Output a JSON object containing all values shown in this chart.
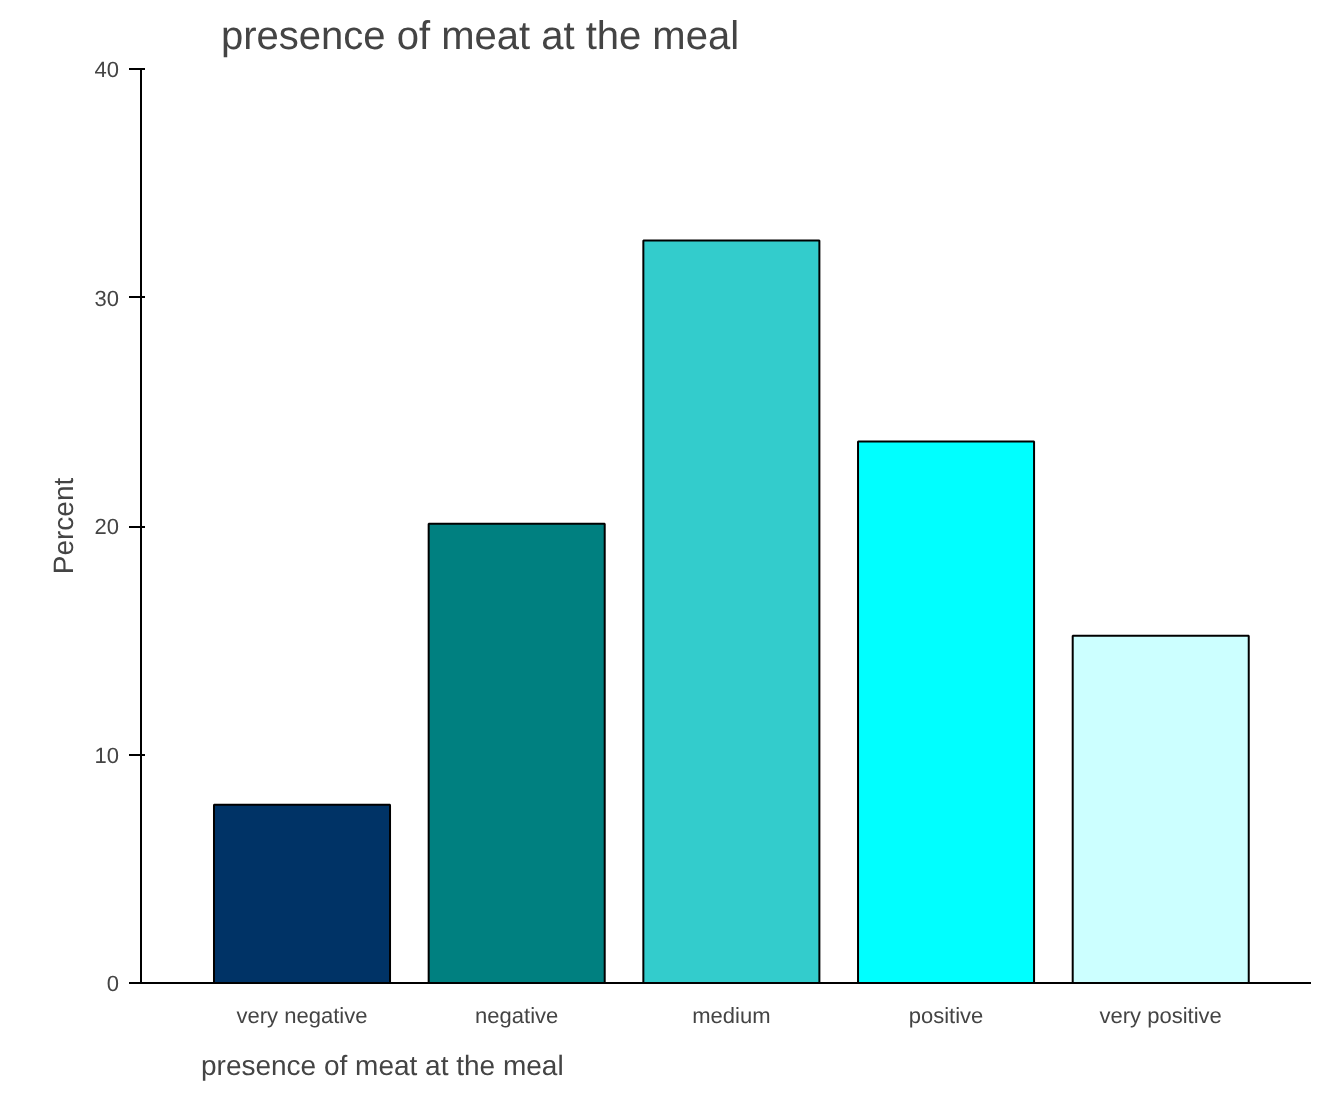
{
  "chart_data": {
    "type": "bar",
    "title": "presence of meat at the meal",
    "xlabel": "presence of meat at the meal",
    "ylabel": "Percent",
    "categories": [
      "very negative",
      "negative",
      "medium",
      "positive",
      "very positive"
    ],
    "values": [
      7.8,
      20.1,
      32.5,
      23.7,
      15.2
    ],
    "colors": [
      "#003366",
      "#008080",
      "#33cccc",
      "#00ffff",
      "#ccffff"
    ],
    "ylim": [
      0,
      40
    ],
    "yticks": [
      0,
      10,
      20,
      30,
      40
    ],
    "grid": false
  }
}
